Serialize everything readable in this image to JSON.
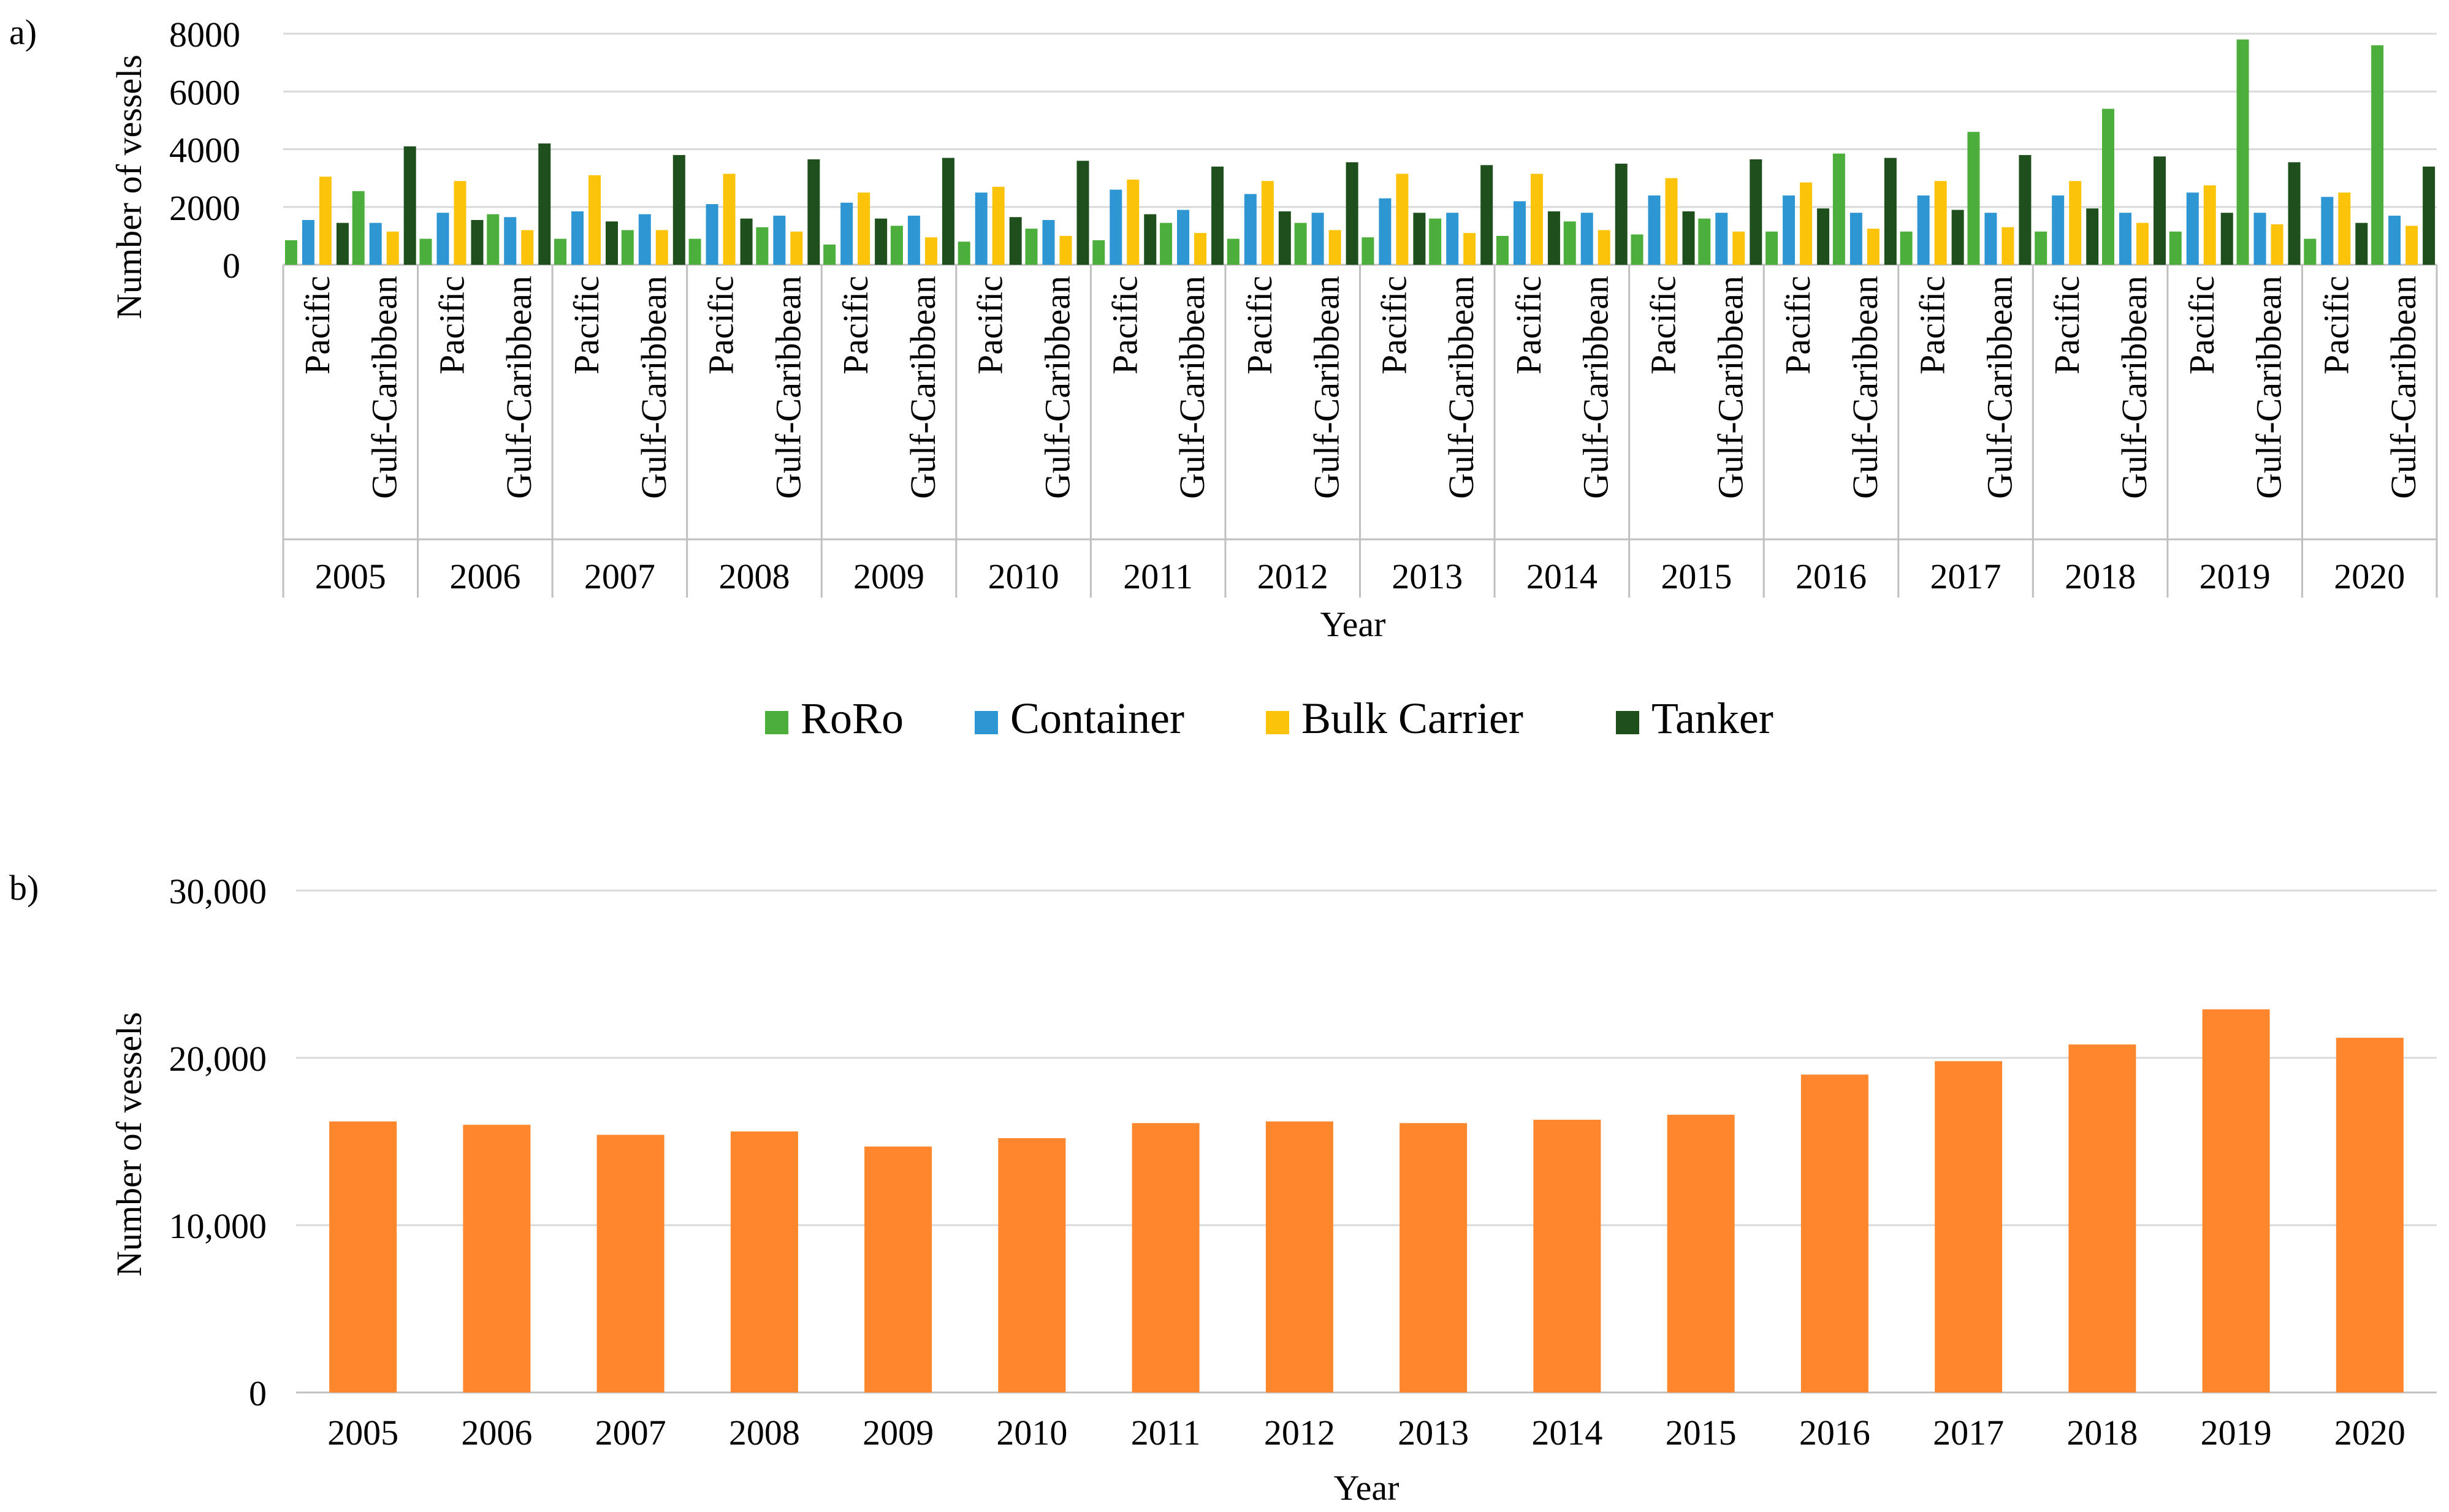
{
  "chart_data": [
    {
      "panel_label": "a)",
      "type": "bar",
      "title": "",
      "xlabel": "Year",
      "ylabel": "Number of vessels",
      "ylim": [
        0,
        8000
      ],
      "yticks": [
        "0",
        "2000",
        "4000",
        "6000",
        "8000"
      ],
      "grid": true,
      "legend_position": "bottom-center",
      "years": [
        "2005",
        "2006",
        "2007",
        "2008",
        "2009",
        "2010",
        "2011",
        "2012",
        "2013",
        "2014",
        "2015",
        "2016",
        "2017",
        "2018",
        "2019",
        "2020"
      ],
      "regions": [
        "Pacific",
        "Gulf-Caribbean"
      ],
      "colors": {
        "RoRo": "#4cae3b",
        "Container": "#2e96d3",
        "Bulk Carrier": "#fcc30b",
        "Tanker": "#1f4f1c"
      },
      "series": [
        {
          "name": "RoRo",
          "Pacific": [
            850,
            900,
            900,
            900,
            700,
            800,
            850,
            900,
            950,
            1000,
            1050,
            1150,
            1150,
            1150,
            1150,
            900
          ],
          "Gulf-Caribbean": [
            2550,
            1750,
            1200,
            1300,
            1350,
            1250,
            1450,
            1450,
            1600,
            1500,
            1600,
            3850,
            4600,
            5400,
            7800,
            7600
          ]
        },
        {
          "name": "Container",
          "Pacific": [
            1550,
            1800,
            1850,
            2100,
            2150,
            2500,
            2600,
            2450,
            2300,
            2200,
            2400,
            2400,
            2400,
            2400,
            2500,
            2350
          ],
          "Gulf-Caribbean": [
            1450,
            1650,
            1750,
            1700,
            1700,
            1550,
            1900,
            1800,
            1800,
            1800,
            1800,
            1800,
            1800,
            1800,
            1800,
            1700
          ]
        },
        {
          "name": "Bulk Carrier",
          "Pacific": [
            3050,
            2900,
            3100,
            3150,
            2500,
            2700,
            2950,
            2900,
            3150,
            3150,
            3000,
            2850,
            2900,
            2900,
            2750,
            2500
          ],
          "Gulf-Caribbean": [
            1150,
            1200,
            1200,
            1150,
            950,
            1000,
            1100,
            1200,
            1100,
            1200,
            1150,
            1250,
            1300,
            1450,
            1400,
            1350
          ]
        },
        {
          "name": "Tanker",
          "Pacific": [
            1450,
            1550,
            1500,
            1600,
            1600,
            1650,
            1750,
            1850,
            1800,
            1850,
            1850,
            1950,
            1900,
            1950,
            1800,
            1450
          ],
          "Gulf-Caribbean": [
            4100,
            4200,
            3800,
            3650,
            3700,
            3600,
            3400,
            3550,
            3450,
            3500,
            3650,
            3700,
            3800,
            3750,
            3550,
            3400
          ]
        }
      ]
    },
    {
      "panel_label": "b)",
      "type": "bar",
      "title": "",
      "xlabel": "Year",
      "ylabel": "Number of vessels",
      "ylim": [
        0,
        30000
      ],
      "yticks": [
        "0",
        "10,000",
        "20,000",
        "30,000"
      ],
      "grid": true,
      "color": "#fe872d",
      "categories": [
        "2005",
        "2006",
        "2007",
        "2008",
        "2009",
        "2010",
        "2011",
        "2012",
        "2013",
        "2014",
        "2015",
        "2016",
        "2017",
        "2018",
        "2019",
        "2020"
      ],
      "values": [
        16200,
        16000,
        15400,
        15600,
        14700,
        15200,
        16100,
        16200,
        16100,
        16300,
        16600,
        19000,
        19800,
        20800,
        22900,
        21200
      ]
    }
  ]
}
